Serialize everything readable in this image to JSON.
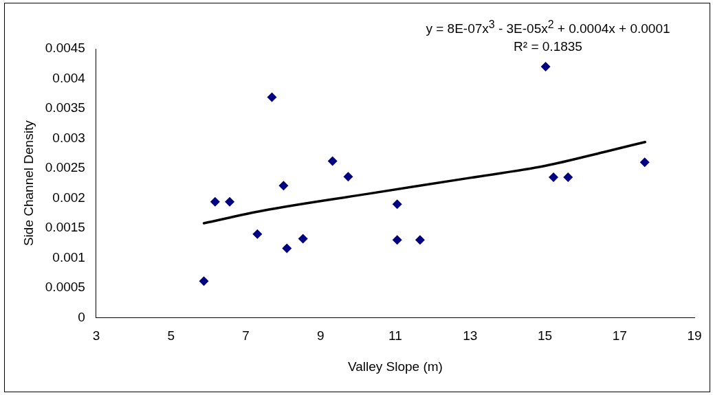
{
  "chart_data": {
    "type": "scatter",
    "xlabel": "Valley Slope (m)",
    "ylabel": "Side Channel Density",
    "annotations": [
      "y = 8E-07x$^{3}$ - 3E-05x$^{2}$ + 0.0004x + 0.0001",
      "R² = 0.1835"
    ],
    "marker": "diamond",
    "grid": false,
    "legend": false,
    "xlim": [
      3,
      19
    ],
    "xticks": [
      3,
      5,
      7,
      9,
      11,
      13,
      15,
      17,
      19
    ],
    "ylim": [
      0,
      0.0045
    ],
    "yticks": [
      0,
      0.0005,
      0.001,
      0.0015,
      0.002,
      0.0025,
      0.003,
      0.0035,
      0.004,
      0.0045
    ],
    "series": [
      {
        "color": "#000080",
        "x": [
          5.88,
          6.18,
          6.57,
          7.31,
          7.7,
          8.01,
          8.1,
          8.53,
          9.32,
          9.74,
          11.05,
          11.05,
          11.66,
          15.02,
          15.23,
          15.62,
          17.67
        ],
        "values": [
          0.00061,
          0.00194,
          0.00194,
          0.0014,
          0.00369,
          0.00221,
          0.00116,
          0.00132,
          0.00262,
          0.00236,
          0.0019,
          0.0013,
          0.0013,
          0.0042,
          0.00235,
          0.00235,
          0.0026
        ]
      },
      {
        "type": "line",
        "color": "#000000",
        "marker": "none",
        "line_style": "solid",
        "x": [
          5.88,
          7.45,
          10.24,
          13.0,
          15.0,
          16.57,
          17.68
        ],
        "values": [
          0.00158,
          0.00179,
          0.00207,
          0.00234,
          0.00254,
          0.00277,
          0.00294
        ]
      }
    ]
  }
}
